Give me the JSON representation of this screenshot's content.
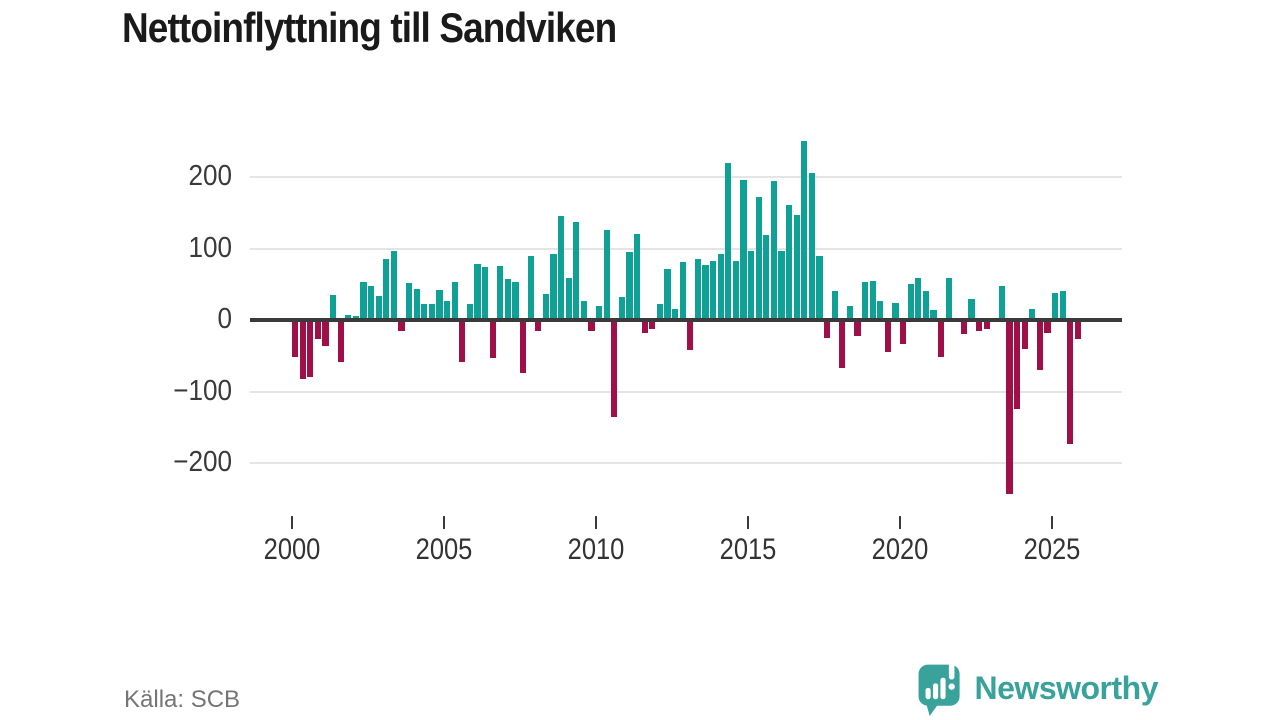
{
  "header": {
    "title": "Nettoinflyttning till Sandviken"
  },
  "footer": {
    "source": "Källa: SCB",
    "brand": "Newsworthy",
    "brand_icon": "speech-bubble-with-bar-chart-and-exclamation",
    "brand_color": "#38a29b"
  },
  "chart_data": {
    "type": "bar",
    "title": "Nettoinflyttning till Sandviken",
    "xlabel": "",
    "ylabel": "",
    "x_unit": "quarter",
    "start_year": 2000,
    "periods_per_year": 4,
    "start_period": "2000 K1",
    "end_period": "2025 K4",
    "values": [
      -51,
      -82,
      -79,
      -26,
      -36,
      35,
      -58,
      7,
      6,
      53,
      47,
      34,
      85,
      97,
      -15,
      52,
      43,
      23,
      22,
      42,
      26,
      53,
      -58,
      23,
      78,
      74,
      -53,
      75,
      58,
      53,
      -74,
      89,
      -15,
      36,
      92,
      146,
      59,
      137,
      27,
      -15,
      19,
      126,
      -136,
      32,
      95,
      121,
      -18,
      -13,
      22,
      72,
      16,
      81,
      -42,
      86,
      77,
      82,
      93,
      220,
      83,
      196,
      97,
      172,
      119,
      195,
      97,
      161,
      147,
      250,
      206,
      90,
      -25,
      41,
      -67,
      19,
      -23,
      53,
      55,
      26,
      -44,
      24,
      -33,
      50,
      59,
      40,
      14,
      -51,
      59,
      0,
      -19,
      30,
      -16,
      -13,
      0,
      48,
      -243,
      -124,
      -40,
      15,
      -70,
      -18,
      38,
      41,
      -173,
      -27
    ],
    "x_ticks": [
      {
        "label": "2000",
        "quarter_index": 0
      },
      {
        "label": "2005",
        "quarter_index": 20
      },
      {
        "label": "2010",
        "quarter_index": 40
      },
      {
        "label": "2015",
        "quarter_index": 60
      },
      {
        "label": "2020",
        "quarter_index": 80
      },
      {
        "label": "2025",
        "quarter_index": 100
      }
    ],
    "y_ticks": [
      200,
      100,
      0,
      -100,
      -200
    ],
    "y_tick_labels": [
      "200",
      "100",
      "0",
      "−100",
      "−200"
    ],
    "ylim": [
      -260,
      270
    ],
    "grid": true,
    "legend": "none",
    "positive_color": "#0fa096",
    "negative_color": "#a01048",
    "zero_line_color": "#3a3a3a",
    "gridline_color": "#e4e4e4"
  }
}
